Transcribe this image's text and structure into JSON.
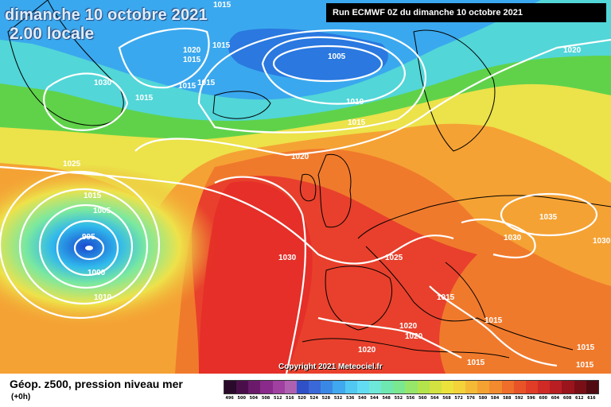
{
  "header": {
    "date": "dimanche 10 octobre 2021",
    "time": "2.00 locale",
    "run": "Run ECMWF 0Z du dimanche 10 octobre 2021"
  },
  "footer": {
    "title": "Géop. z500, pression niveau mer",
    "subtitle": "(+0h)",
    "copyright": "Copyright 2021 Meteociel.fr"
  },
  "colors": {
    "low": "#1e6fd9",
    "mid": "#36d2c8",
    "green": "#4ecb3a",
    "yellow": "#e6e24a",
    "orange": "#f38a28",
    "red": "#e83a2c",
    "isobar": "#ffffff",
    "land_outline": "#000000"
  },
  "color_scale": {
    "ticks": [
      "496",
      "500",
      "504",
      "508",
      "512",
      "516",
      "520",
      "524",
      "528",
      "532",
      "536",
      "540",
      "544",
      "548",
      "552",
      "556",
      "560",
      "564",
      "568",
      "572",
      "576",
      "580",
      "584",
      "588",
      "592",
      "596",
      "600",
      "604",
      "608",
      "612",
      "616"
    ],
    "colors": [
      "#2a0a2a",
      "#4a0f4a",
      "#6b1a6b",
      "#8a2a8a",
      "#a040a0",
      "#b060b0",
      "#3050c8",
      "#3a68d8",
      "#3a88e6",
      "#40a8ee",
      "#50c8f2",
      "#62dcf2",
      "#6ee8d8",
      "#6ee8b0",
      "#7ae890",
      "#96e66a",
      "#b4e44c",
      "#d2e240",
      "#ece23c",
      "#f4d23a",
      "#f4ba36",
      "#f4a232",
      "#f28a2e",
      "#ee6e2a",
      "#e85428",
      "#e03c26",
      "#d02a26",
      "#b81e22",
      "#9a141c",
      "#7a0e16",
      "#500a10"
    ]
  },
  "isobar_labels": [
    "1015",
    "1015",
    "1020",
    "1015",
    "1015",
    "1030",
    "1015",
    "1015",
    "1005",
    "1020",
    "1010",
    "1015",
    "1020",
    "1025",
    "1015",
    "1005",
    "995",
    "1000",
    "1010",
    "1030",
    "1025",
    "1030",
    "1035",
    "1030",
    "1015",
    "1015",
    "1020",
    "1020",
    "1020",
    "1015",
    "1015",
    "1015"
  ],
  "marker": "L"
}
